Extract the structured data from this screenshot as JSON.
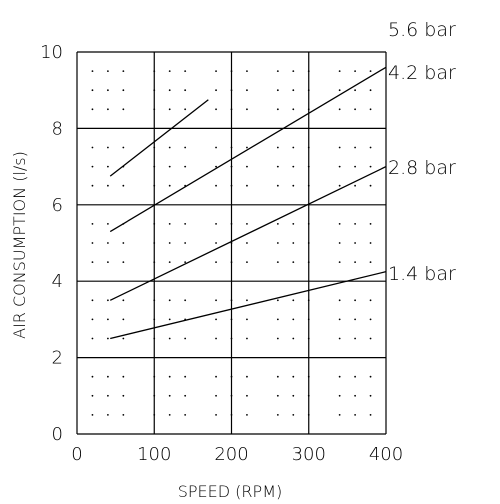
{
  "chart_data": {
    "type": "line",
    "xlabel": "SPEED (RPM)",
    "ylabel": "AIR CONSUMPTION (l/s)",
    "xlim": [
      0,
      400
    ],
    "ylim": [
      0,
      10
    ],
    "x_ticks": [
      "0",
      "100",
      "200",
      "300",
      "400"
    ],
    "y_ticks": [
      "0",
      "2",
      "4",
      "6",
      "8",
      "10"
    ],
    "grid": true,
    "series": [
      {
        "name": "5.6 bar",
        "x": [
          43,
          170
        ],
        "y": [
          6.75,
          8.75
        ]
      },
      {
        "name": "4.2 bar",
        "x": [
          43,
          400
        ],
        "y": [
          5.3,
          9.6
        ]
      },
      {
        "name": "2.8 bar",
        "x": [
          43,
          400
        ],
        "y": [
          3.5,
          7.0
        ]
      },
      {
        "name": "1.4 bar",
        "x": [
          43,
          400
        ],
        "y": [
          2.5,
          4.25
        ]
      }
    ]
  },
  "colors": {
    "line": "#000000",
    "grid": "#000000",
    "background": "#ffffff"
  }
}
